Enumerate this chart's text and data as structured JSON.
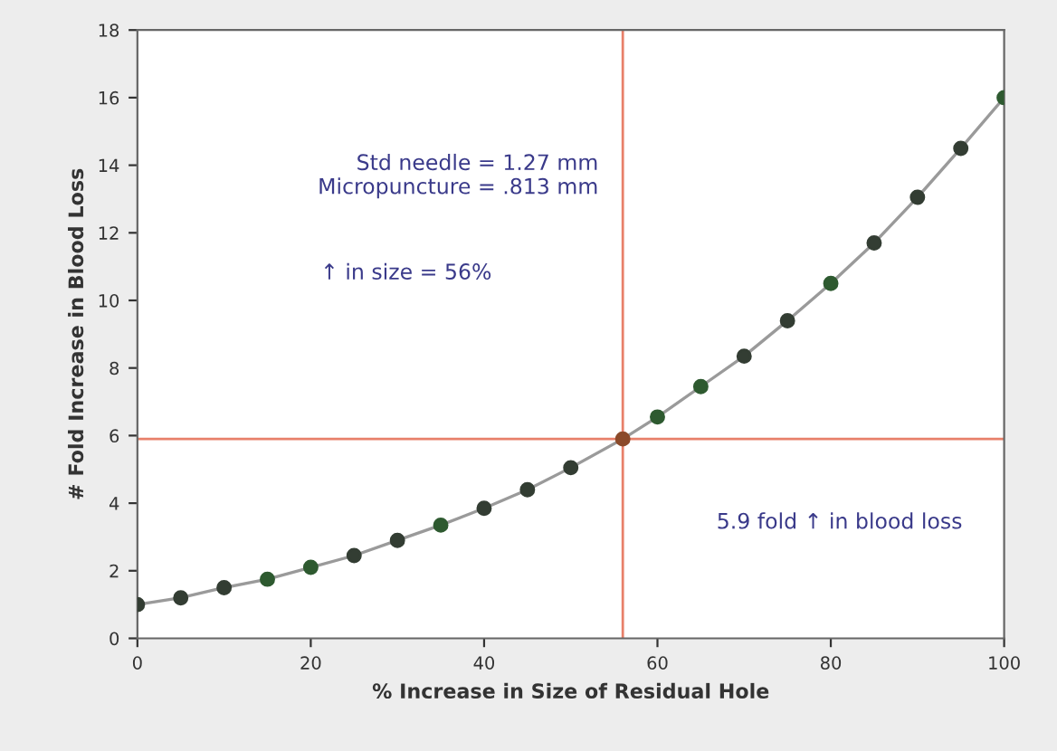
{
  "chart_data": {
    "type": "line",
    "xlabel": "% Increase in Size of Residual Hole",
    "ylabel": "# Fold Increase in Blood Loss",
    "x": [
      0,
      5,
      10,
      15,
      20,
      25,
      30,
      35,
      40,
      45,
      50,
      56,
      60,
      65,
      70,
      75,
      80,
      85,
      90,
      95,
      100
    ],
    "series": [
      {
        "color": "#9a9a9a",
        "marker": "none",
        "values": [
          1.0,
          1.2,
          1.5,
          1.75,
          2.1,
          2.45,
          2.9,
          3.35,
          3.85,
          4.4,
          5.05,
          5.9,
          6.55,
          7.45,
          8.35,
          9.4,
          10.5,
          11.7,
          13.05,
          14.5,
          16.0
        ]
      },
      {
        "type": "scatter",
        "color": "#2e4a35",
        "marker": "circle",
        "colors": [
          "#333d33",
          "#333d33",
          "#333d33",
          "#2e5a30",
          "#2e5a30",
          "#333d33",
          "#333d33",
          "#2e5a30",
          "#333d33",
          "#333d33",
          "#333d33",
          "#8b4a2a",
          "#2e5a30",
          "#2e5a30",
          "#333d33",
          "#333d33",
          "#2e5a30",
          "#333d33",
          "#333d33",
          "#333d33",
          "#2e5a30"
        ],
        "values": [
          1.0,
          1.2,
          1.5,
          1.75,
          2.1,
          2.45,
          2.9,
          3.35,
          3.85,
          4.4,
          5.05,
          5.9,
          6.55,
          7.45,
          8.35,
          9.4,
          10.5,
          11.7,
          13.05,
          14.5,
          16.0
        ]
      }
    ],
    "xlim": [
      0,
      100
    ],
    "xticks": [
      0,
      20,
      40,
      60,
      80,
      100
    ],
    "ylim": [
      0,
      18
    ],
    "yticks": [
      0,
      2,
      4,
      6,
      8,
      10,
      12,
      14,
      16,
      18
    ],
    "ref_lines": [
      {
        "axis": "x",
        "value": 56,
        "color": "#e8806a"
      },
      {
        "axis": "y",
        "value": 5.9,
        "color": "#e8806a"
      }
    ],
    "annotations": [
      "Std needle = 1.27 mm\nMicropuncture = .813 mm",
      "↑ in size = 56%",
      "5.9 fold ↑ in blood loss"
    ],
    "grid": false,
    "legend": false
  }
}
